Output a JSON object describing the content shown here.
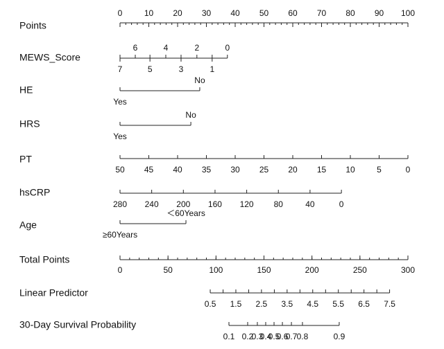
{
  "rows": [
    {
      "label": "Points",
      "scale": "points",
      "ticks": [
        0,
        10,
        20,
        30,
        40,
        50,
        60,
        70,
        80,
        90,
        100
      ],
      "minor_step": 2
    },
    {
      "label": "MEWS_Score",
      "ticks": [
        {
          "value": 7,
          "points": 0
        },
        {
          "value": 6,
          "points": 5.3
        },
        {
          "value": 5,
          "points": 10.4
        },
        {
          "value": 4,
          "points": 15.9
        },
        {
          "value": 3,
          "points": 21.2
        },
        {
          "value": 2,
          "points": 26.7
        },
        {
          "value": 1,
          "points": 32
        },
        {
          "value": 0,
          "points": 37.3
        }
      ]
    },
    {
      "label": "HE",
      "ticks": [
        {
          "value": "Yes",
          "points": 0
        },
        {
          "value": "No",
          "points": 27.7
        }
      ]
    },
    {
      "label": "HRS",
      "ticks": [
        {
          "value": "Yes",
          "points": 0
        },
        {
          "value": "No",
          "points": 24.6
        }
      ]
    },
    {
      "label": "PT",
      "ticks": [
        {
          "value": 50,
          "points": 0
        },
        {
          "value": 45,
          "points": 10
        },
        {
          "value": 40,
          "points": 20
        },
        {
          "value": 35,
          "points": 30
        },
        {
          "value": 30,
          "points": 40
        },
        {
          "value": 25,
          "points": 50
        },
        {
          "value": 20,
          "points": 60
        },
        {
          "value": 15,
          "points": 70
        },
        {
          "value": 10,
          "points": 80
        },
        {
          "value": 5,
          "points": 90
        },
        {
          "value": 0,
          "points": 100
        }
      ]
    },
    {
      "label": "hsCRP",
      "ticks": [
        {
          "value": 280,
          "points": 0
        },
        {
          "value": 240,
          "points": 11
        },
        {
          "value": 200,
          "points": 22
        },
        {
          "value": 160,
          "points": 33
        },
        {
          "value": 120,
          "points": 44
        },
        {
          "value": 80,
          "points": 55
        },
        {
          "value": 40,
          "points": 66
        },
        {
          "value": 0,
          "points": 76.9
        }
      ]
    },
    {
      "label": "Age",
      "ticks": [
        {
          "value": "≥60Years",
          "points": 0
        },
        {
          "value": "＜60Years",
          "points": 22.9
        }
      ]
    },
    {
      "label": "Total Points",
      "scale": "total",
      "ticks": [
        0,
        50,
        100,
        150,
        200,
        250,
        300
      ],
      "minor_step": 10
    },
    {
      "label": "Linear Predictor",
      "ticks": [
        {
          "value": 0.5,
          "total": 94
        },
        {
          "value": 1.5,
          "total": 120.7
        },
        {
          "value": 2.5,
          "total": 147.4
        },
        {
          "value": 3.5,
          "total": 174.1
        },
        {
          "value": 4.5,
          "total": 200.8
        },
        {
          "value": 5.5,
          "total": 227.5
        },
        {
          "value": 6.5,
          "total": 254.2
        },
        {
          "value": 7.5,
          "total": 280.9
        }
      ],
      "minor": [
        107.4,
        134.1,
        160.8,
        187.5,
        214.2,
        240.9,
        267.6
      ]
    },
    {
      "label": "30-Day Survival Probability",
      "ticks": [
        {
          "value": 0.1,
          "total": 113.5
        },
        {
          "value": 0.2,
          "total": 133
        },
        {
          "value": 0.3,
          "total": 143.1
        },
        {
          "value": 0.4,
          "total": 151.8
        },
        {
          "value": 0.5,
          "total": 160.5
        },
        {
          "value": 0.6,
          "total": 169.2
        },
        {
          "value": 0.7,
          "total": 178.6
        },
        {
          "value": 0.8,
          "total": 190.1
        },
        {
          "value": 0.9,
          "total": 228.4
        }
      ]
    }
  ]
}
